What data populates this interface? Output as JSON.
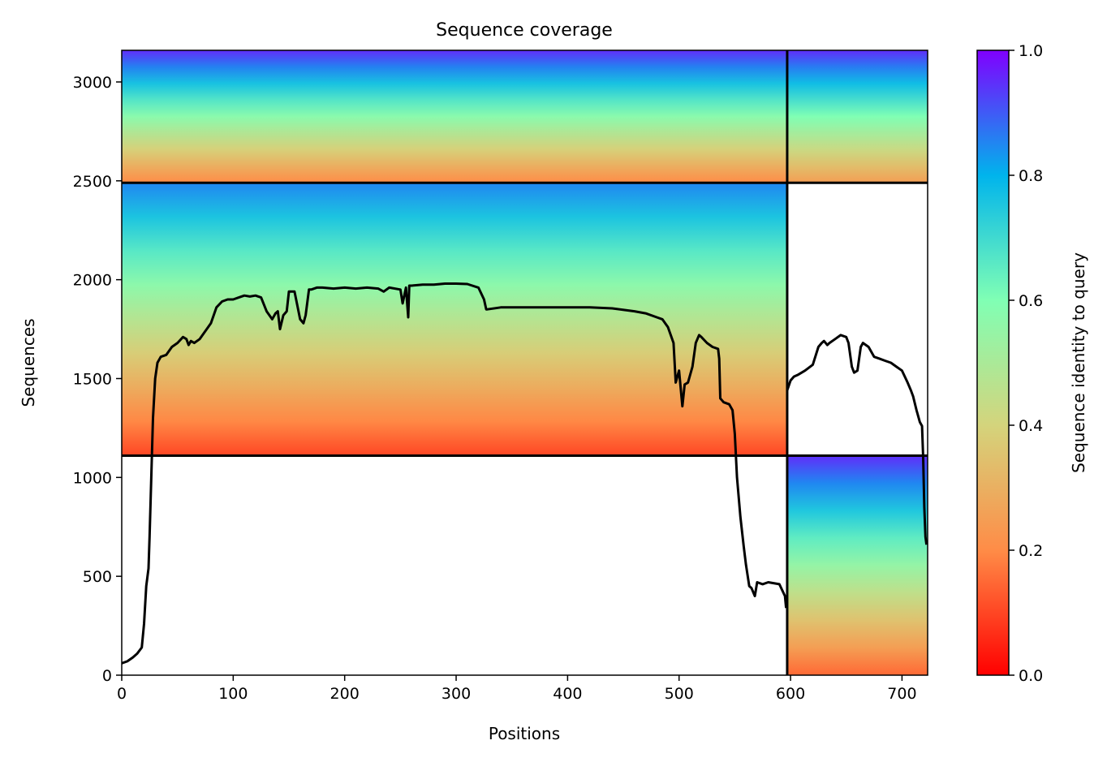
{
  "chart_data": {
    "type": "heatmap",
    "title": "Sequence coverage",
    "xlabel": "Positions",
    "ylabel": "Sequences",
    "xlim": [
      0,
      723
    ],
    "ylim": [
      0,
      3160
    ],
    "xticks": [
      0,
      100,
      200,
      300,
      400,
      500,
      600,
      700
    ],
    "yticks": [
      0,
      500,
      1000,
      1500,
      2000,
      2500,
      3000
    ],
    "grid": false,
    "colorbar": {
      "label": "Sequence identity to query",
      "range": [
        0,
        1
      ],
      "ticks": [
        0.0,
        0.2,
        0.4,
        0.6,
        0.8,
        1.0
      ],
      "tick_labels": [
        "0.0",
        "0.2",
        "0.4",
        "0.6",
        "0.8",
        "1.0"
      ],
      "colormap": "rainbow_r",
      "colors": [
        "#ff0000",
        "#ff8c47",
        "#d4d47c",
        "#80ffb4",
        "#00b4ec",
        "#8000ff"
      ]
    },
    "separators": {
      "horizontal": [
        1110,
        2490
      ],
      "vertical": [
        597
      ]
    },
    "blocks": [
      {
        "x_range": [
          0,
          597
        ],
        "y_range": [
          1110,
          2490
        ],
        "identity_range": [
          0.1,
          0.85
        ]
      },
      {
        "x_range": [
          0,
          597
        ],
        "y_range": [
          2490,
          3160
        ],
        "identity_range": [
          0.2,
          0.95
        ]
      },
      {
        "x_range": [
          597,
          723
        ],
        "y_range": [
          0,
          1110
        ],
        "identity_range": [
          0.15,
          0.95
        ]
      },
      {
        "x_range": [
          597,
          723
        ],
        "y_range": [
          2490,
          3160
        ],
        "identity_range": [
          0.25,
          0.95
        ]
      }
    ],
    "series": [
      {
        "type": "line",
        "color": "#000000",
        "x": [
          0,
          5,
          10,
          14,
          18,
          20,
          22,
          24,
          25,
          26,
          27,
          28,
          30,
          32,
          35,
          40,
          45,
          50,
          55,
          58,
          60,
          62,
          65,
          70,
          75,
          80,
          85,
          90,
          95,
          100,
          105,
          110,
          115,
          120,
          125,
          130,
          135,
          138,
          140,
          142,
          145,
          148,
          150,
          155,
          160,
          163,
          165,
          168,
          170,
          175,
          180,
          190,
          200,
          210,
          220,
          230,
          235,
          240,
          250,
          252,
          255,
          257,
          258,
          260,
          270,
          280,
          290,
          300,
          310,
          320,
          325,
          327,
          328,
          340,
          360,
          380,
          400,
          420,
          440,
          460,
          470,
          480,
          485,
          490,
          495,
          497,
          500,
          503,
          505,
          508,
          512,
          515,
          518,
          520,
          525,
          530,
          535,
          536,
          537,
          540,
          545,
          548,
          550,
          552,
          555,
          558,
          560,
          563,
          565,
          568,
          570,
          575,
          580,
          590,
          595,
          596
        ],
        "y": [
          60,
          70,
          90,
          110,
          140,
          260,
          450,
          540,
          700,
          900,
          1100,
          1300,
          1500,
          1580,
          1610,
          1620,
          1660,
          1680,
          1710,
          1700,
          1670,
          1690,
          1680,
          1700,
          1740,
          1780,
          1860,
          1890,
          1900,
          1900,
          1910,
          1920,
          1915,
          1920,
          1910,
          1840,
          1800,
          1830,
          1840,
          1750,
          1820,
          1840,
          1940,
          1940,
          1800,
          1780,
          1820,
          1950,
          1950,
          1960,
          1960,
          1955,
          1960,
          1955,
          1960,
          1955,
          1940,
          1960,
          1950,
          1880,
          1960,
          1810,
          1970,
          1970,
          1975,
          1975,
          1980,
          1980,
          1978,
          1960,
          1900,
          1850,
          1850,
          1860,
          1860,
          1860,
          1860,
          1860,
          1855,
          1840,
          1830,
          1810,
          1800,
          1760,
          1680,
          1480,
          1540,
          1360,
          1470,
          1480,
          1560,
          1680,
          1720,
          1710,
          1680,
          1660,
          1650,
          1600,
          1400,
          1380,
          1370,
          1340,
          1220,
          1000,
          800,
          650,
          560,
          450,
          440,
          400,
          470,
          460,
          470,
          460,
          400,
          340
        ]
      },
      {
        "type": "line",
        "color": "#000000",
        "x": [
          597,
          600,
          603,
          607,
          613,
          620,
          625,
          628,
          630,
          633,
          635,
          640,
          645,
          650,
          652,
          655,
          657,
          660,
          663,
          665,
          670,
          675,
          680,
          685,
          690,
          695,
          700,
          705,
          708,
          710,
          713,
          716,
          718,
          719,
          720,
          721,
          722
        ],
        "y": [
          1440,
          1490,
          1510,
          1520,
          1540,
          1570,
          1660,
          1680,
          1690,
          1670,
          1680,
          1700,
          1720,
          1710,
          1680,
          1560,
          1530,
          1540,
          1660,
          1680,
          1660,
          1610,
          1600,
          1590,
          1580,
          1560,
          1540,
          1480,
          1440,
          1410,
          1340,
          1280,
          1260,
          1100,
          850,
          700,
          660
        ]
      }
    ]
  }
}
